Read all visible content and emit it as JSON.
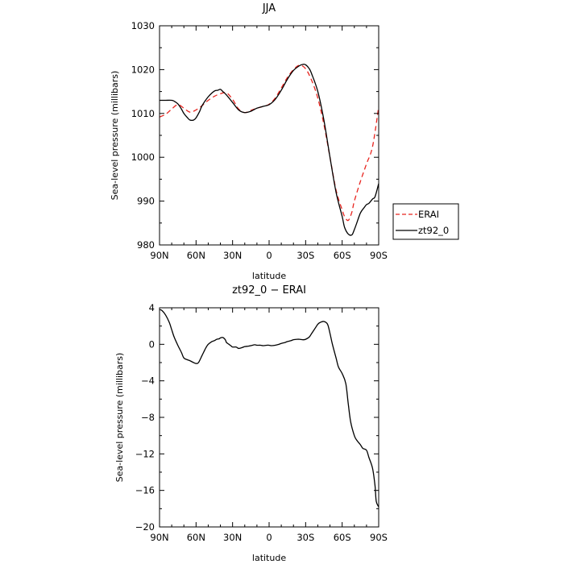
{
  "chart_data": [
    {
      "type": "line",
      "title": "JJA",
      "xlabel": "latitude",
      "ylabel": "Sea-level pressure (millibars)",
      "xlim": [
        90,
        -90
      ],
      "ylim": [
        980,
        1030
      ],
      "xticks": [
        90,
        60,
        30,
        0,
        -30,
        -60,
        -90
      ],
      "xticklabels": [
        "90N",
        "60N",
        "30N",
        "0",
        "30S",
        "60S",
        "90S"
      ],
      "yticks": [
        980,
        990,
        1000,
        1010,
        1020,
        1030
      ],
      "yticklabels": [
        "980",
        "990",
        "1000",
        "1010",
        "1020",
        "1030"
      ],
      "legend_position": "outside-right",
      "series": [
        {
          "name": "ERAI",
          "color": "#e8251f",
          "dash": "dashed",
          "x": [
            90,
            85,
            80,
            75,
            70,
            65,
            60,
            55,
            50,
            45,
            40,
            35,
            30,
            25,
            20,
            15,
            10,
            5,
            0,
            -5,
            -10,
            -15,
            -20,
            -25,
            -30,
            -35,
            -40,
            -45,
            -50,
            -55,
            -60,
            -62,
            -65,
            -68,
            -70,
            -75,
            -80,
            -85,
            -90
          ],
          "values": [
            1009.2,
            1009.8,
            1011.0,
            1012.0,
            1011.2,
            1010.3,
            1010.8,
            1011.8,
            1013.0,
            1013.9,
            1014.5,
            1014.7,
            1013.2,
            1011.0,
            1010.2,
            1010.7,
            1011.2,
            1011.6,
            1012.1,
            1013.5,
            1015.8,
            1018.2,
            1020.0,
            1021.0,
            1020.2,
            1017.5,
            1013.5,
            1007.5,
            1000.0,
            992.5,
            988.0,
            986.5,
            985.6,
            987.5,
            990.0,
            994.5,
            998.5,
            1002.5,
            1011.5
          ]
        },
        {
          "name": "zt92_0",
          "color": "#000000",
          "dash": "solid",
          "x": [
            90,
            85,
            80,
            78,
            75,
            72,
            70,
            67,
            65,
            62,
            60,
            57,
            55,
            50,
            45,
            42,
            40,
            38,
            35,
            30,
            25,
            20,
            15,
            10,
            5,
            0,
            -5,
            -10,
            -15,
            -20,
            -25,
            -28,
            -30,
            -33,
            -35,
            -40,
            -45,
            -50,
            -55,
            -60,
            -62,
            -65,
            -68,
            -70,
            -72,
            -75,
            -78,
            -80,
            -82,
            -85,
            -87,
            -90
          ],
          "values": [
            1013.0,
            1013.0,
            1013.0,
            1012.8,
            1012.2,
            1011.0,
            1010.0,
            1009.0,
            1008.5,
            1008.5,
            1009.0,
            1010.5,
            1011.8,
            1013.8,
            1015.1,
            1015.3,
            1015.5,
            1015.0,
            1014.2,
            1012.5,
            1010.8,
            1010.2,
            1010.5,
            1011.2,
            1011.6,
            1012.0,
            1013.2,
            1015.3,
            1017.8,
            1019.8,
            1020.9,
            1021.2,
            1021.1,
            1020.2,
            1019.0,
            1015.0,
            1008.5,
            1000.0,
            992.0,
            986.5,
            984.0,
            982.5,
            982.3,
            983.5,
            985.0,
            987.3,
            988.5,
            989.2,
            989.5,
            990.5,
            991.0,
            994.0
          ]
        }
      ]
    },
    {
      "type": "line",
      "title": "zt92_0 − ERAI",
      "xlabel": "latitude",
      "ylabel": "Sea-level pressure (millibars)",
      "xlim": [
        90,
        -90
      ],
      "ylim": [
        -20,
        4
      ],
      "xticks": [
        90,
        60,
        30,
        0,
        -30,
        -60,
        -90
      ],
      "xticklabels": [
        "90N",
        "60N",
        "30N",
        "0",
        "30S",
        "60S",
        "90S"
      ],
      "yticks": [
        -20,
        -16,
        -12,
        -8,
        -4,
        0,
        4
      ],
      "yticklabels": [
        "−20",
        "−16",
        "−12",
        "−8",
        "−4",
        "0",
        "4"
      ],
      "series": [
        {
          "name": "zt92_0 − ERAI",
          "color": "#000000",
          "dash": "solid",
          "x": [
            90,
            88,
            85,
            82,
            80,
            78,
            75,
            72,
            70,
            67,
            65,
            62,
            60,
            58,
            55,
            52,
            50,
            47,
            45,
            43,
            41,
            40,
            38,
            36,
            35,
            33,
            31,
            30,
            27,
            25,
            22,
            20,
            17,
            15,
            12,
            10,
            7,
            5,
            2,
            0,
            -2,
            -5,
            -8,
            -10,
            -13,
            -15,
            -18,
            -20,
            -23,
            -25,
            -28,
            -30,
            -33,
            -35,
            -38,
            -40,
            -42,
            -45,
            -48,
            -50,
            -52,
            -55,
            -57,
            -60,
            -63,
            -65,
            -67,
            -70,
            -72,
            -75,
            -77,
            -80,
            -82,
            -85,
            -87,
            -88,
            -90
          ],
          "values": [
            3.8,
            3.7,
            3.2,
            2.4,
            1.6,
            0.8,
            -0.1,
            -0.9,
            -1.5,
            -1.7,
            -1.8,
            -2.0,
            -2.1,
            -2.0,
            -1.2,
            -0.4,
            0.0,
            0.3,
            0.4,
            0.55,
            0.6,
            0.7,
            0.75,
            0.5,
            0.2,
            0.0,
            -0.2,
            -0.3,
            -0.3,
            -0.45,
            -0.35,
            -0.25,
            -0.2,
            -0.15,
            -0.05,
            -0.1,
            -0.1,
            -0.15,
            -0.1,
            -0.1,
            -0.15,
            -0.1,
            0.0,
            0.1,
            0.2,
            0.3,
            0.4,
            0.5,
            0.55,
            0.55,
            0.5,
            0.55,
            0.8,
            1.2,
            1.8,
            2.2,
            2.4,
            2.5,
            2.2,
            1.2,
            0.0,
            -1.5,
            -2.5,
            -3.2,
            -4.3,
            -6.5,
            -8.5,
            -10.0,
            -10.5,
            -11.0,
            -11.4,
            -11.6,
            -12.4,
            -13.6,
            -15.5,
            -17.2,
            -17.8
          ]
        }
      ]
    }
  ]
}
